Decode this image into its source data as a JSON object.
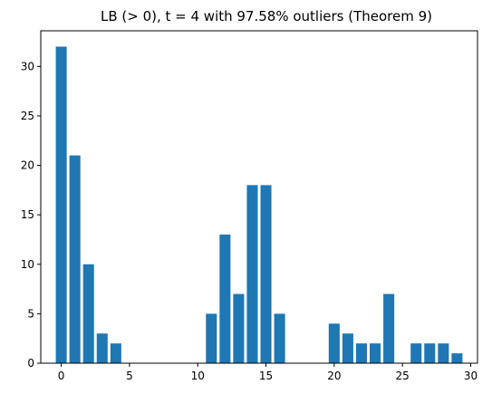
{
  "chart_data": {
    "type": "bar",
    "title": "LB (> 0), t = 4 with 97.58% outliers (Theorem 9)",
    "xlabel": "",
    "ylabel": "",
    "x": [
      0,
      1,
      2,
      3,
      4,
      5,
      6,
      7,
      8,
      9,
      10,
      11,
      12,
      13,
      14,
      15,
      16,
      17,
      18,
      19,
      20,
      21,
      22,
      23,
      24,
      25,
      26,
      27,
      28,
      29
    ],
    "values": [
      32,
      21,
      10,
      3,
      2,
      0,
      0,
      0,
      0,
      0,
      0,
      5,
      13,
      7,
      18,
      18,
      5,
      0,
      0,
      0,
      4,
      3,
      2,
      2,
      7,
      0,
      2,
      2,
      2,
      1
    ],
    "xlim": [
      -1.5,
      30.5
    ],
    "ylim": [
      0,
      33.6
    ],
    "xticks": [
      0,
      5,
      10,
      15,
      20,
      25,
      30
    ],
    "xtick_labels": [
      "0",
      "5",
      "10",
      "15",
      "20",
      "25",
      "30"
    ],
    "yticks": [
      0,
      5,
      10,
      15,
      20,
      25,
      30
    ],
    "ytick_labels": [
      "0",
      "5",
      "10",
      "15",
      "20",
      "25",
      "30"
    ],
    "bar_color": "#1f77b4",
    "grid": false,
    "legend": "none"
  }
}
